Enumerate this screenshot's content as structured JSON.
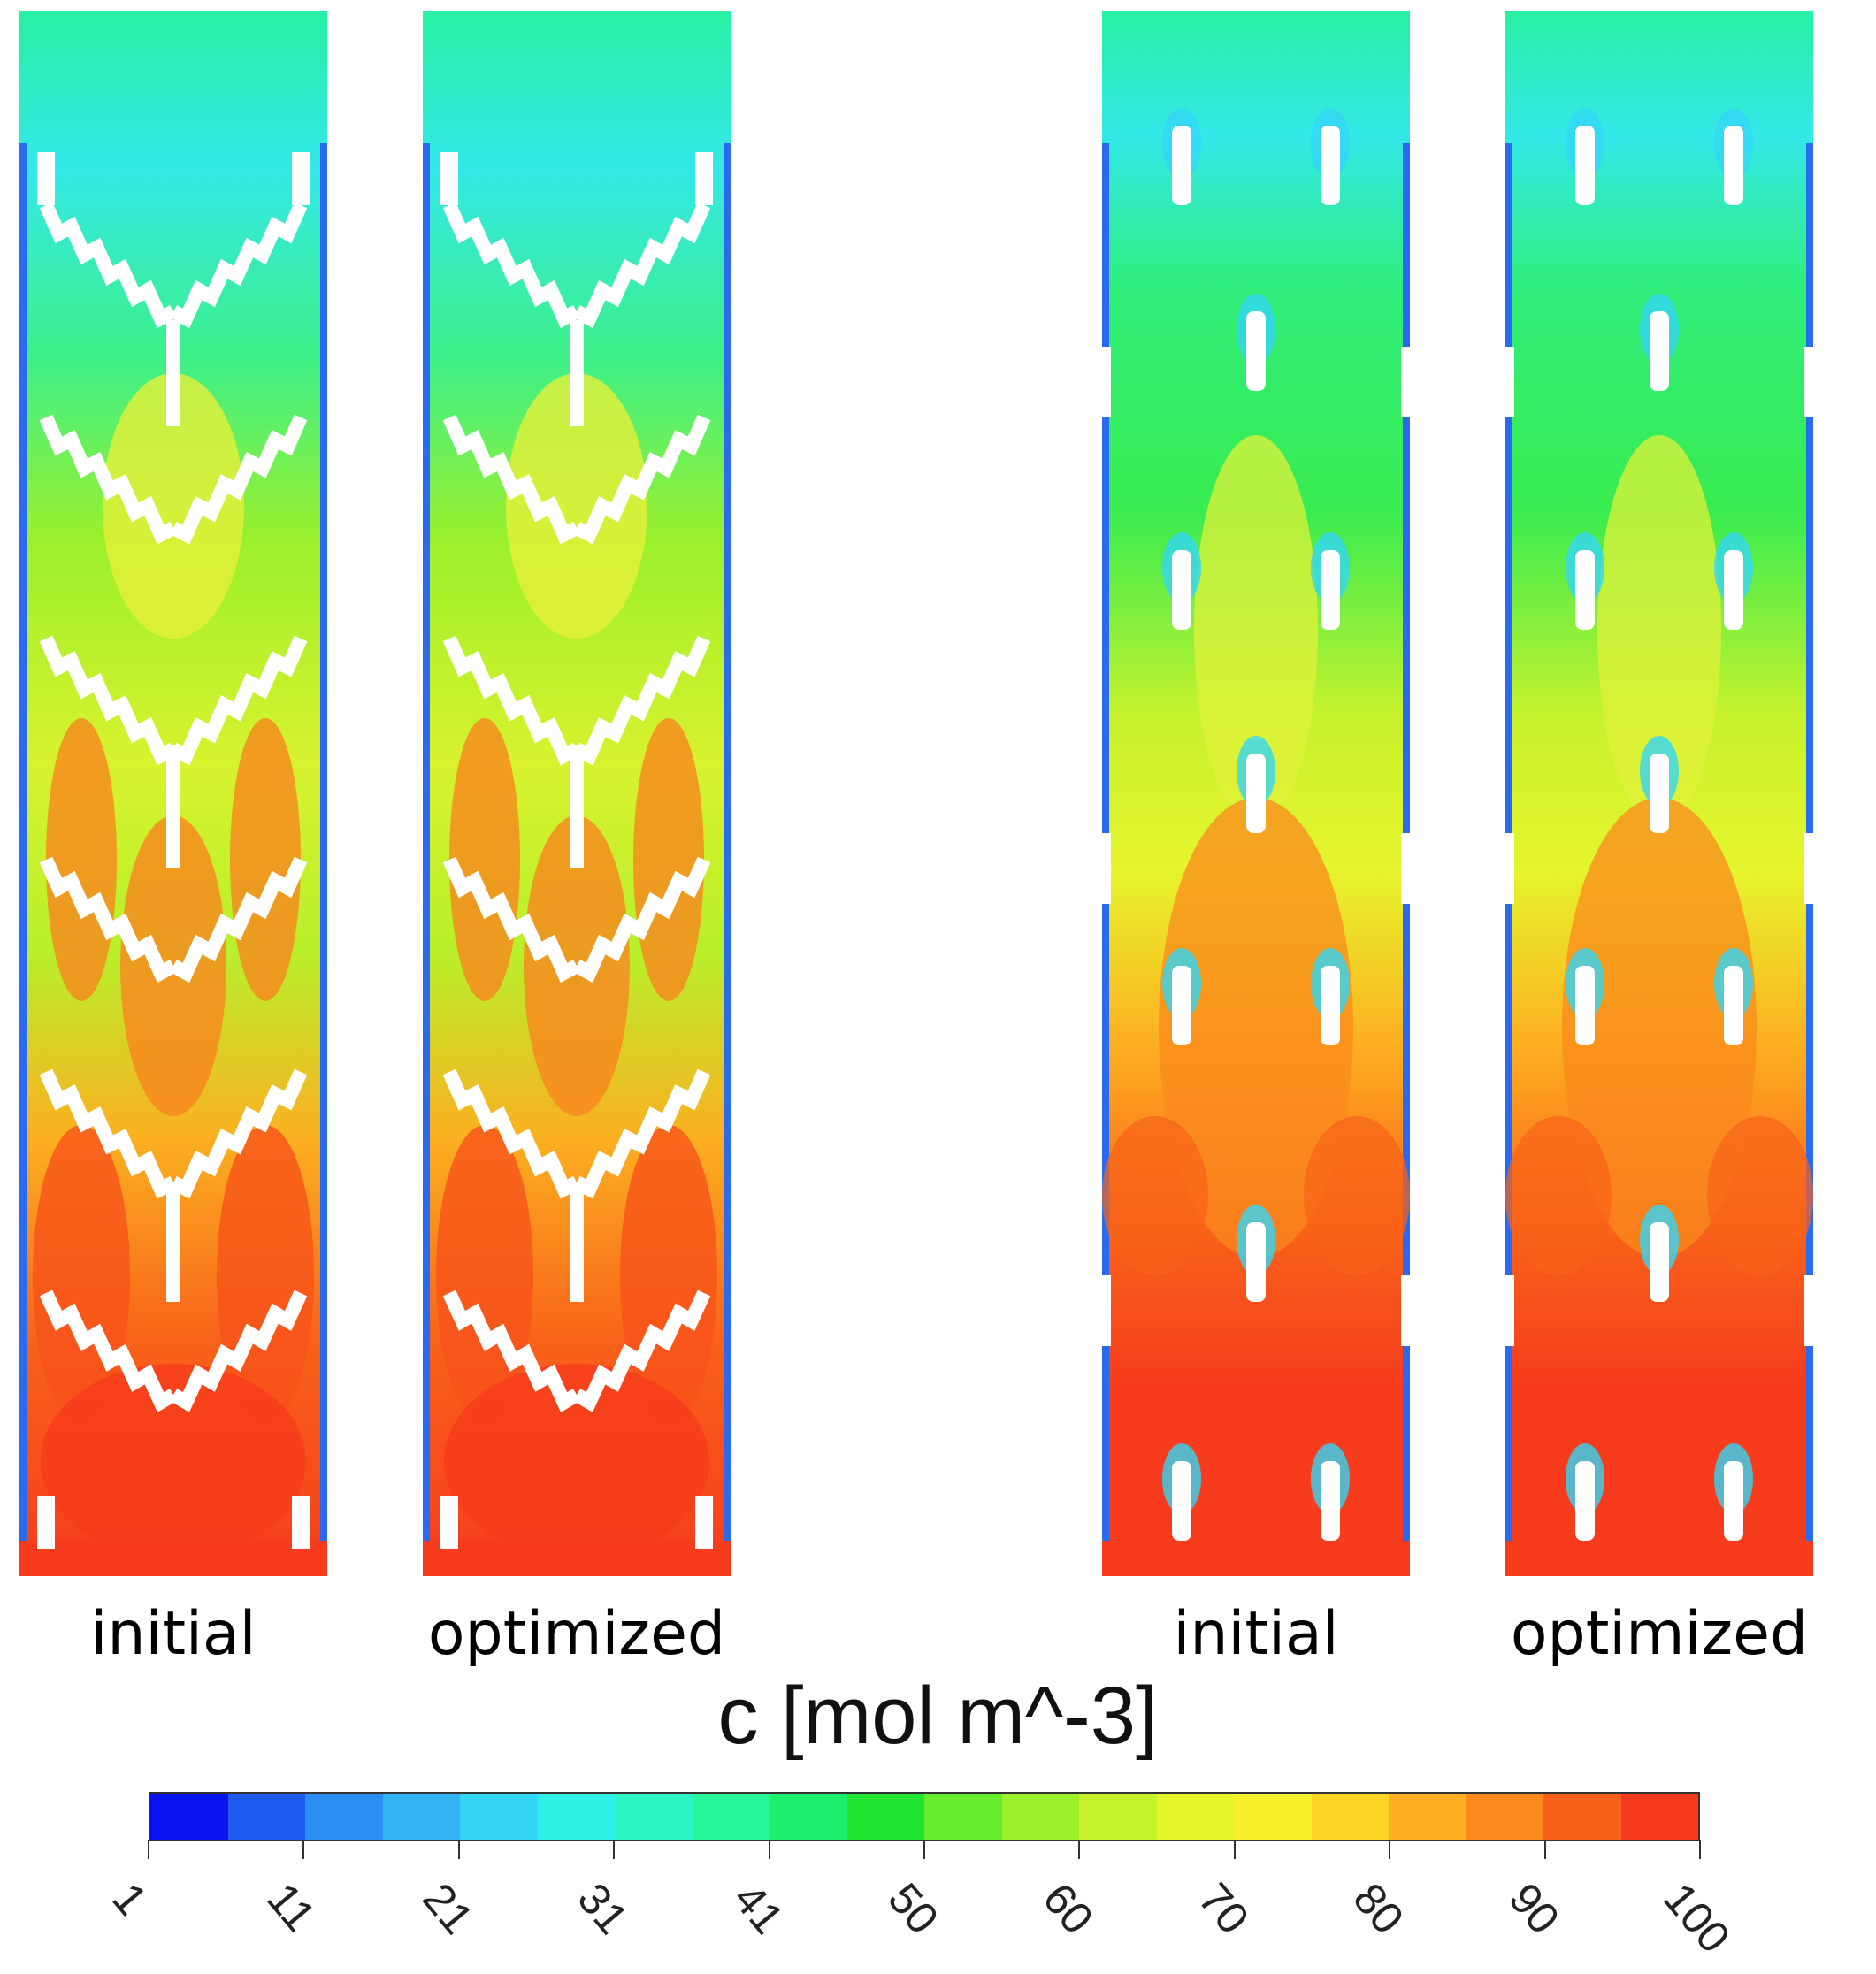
{
  "panels": [
    {
      "label": "initial",
      "design": "zigzag"
    },
    {
      "label": "optimized",
      "design": "zigzag"
    },
    {
      "label": "initial",
      "design": "pins"
    },
    {
      "label": "optimized",
      "design": "pins"
    }
  ],
  "colorbar": {
    "title": "c [mol m^-3]",
    "tick_labels": [
      "1",
      "11",
      "21",
      "31",
      "41",
      "50",
      "60",
      "70",
      "80",
      "90",
      "100"
    ],
    "colors": [
      "#0a14f0",
      "#1e5af0",
      "#2a8ef2",
      "#35b4f5",
      "#33d6f5",
      "#2ef0e6",
      "#2cf5c4",
      "#27f59a",
      "#1cf06e",
      "#1ee632",
      "#66ee2e",
      "#9cf02a",
      "#c6f22c",
      "#e6f42c",
      "#f8f02a",
      "#fcd424",
      "#fdb020",
      "#fb8a1a",
      "#f8621a",
      "#f63c1c"
    ]
  }
}
